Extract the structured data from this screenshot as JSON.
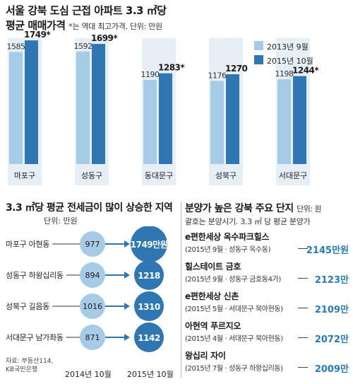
{
  "header": {
    "title": "서울 강북 도심 근접 아파트 3.3 ㎡당",
    "subtitle": "평균 매매가격",
    "note": "*는 역대 최고가격. 단위: 만원"
  },
  "colors": {
    "series_2013": "#a6cbe6",
    "series_2015": "#2e77b3",
    "axis_bg": "#e6eef6",
    "circle_old": "#a6cbe6",
    "circle_new": "#2e77b3",
    "price_text": "#2a7ab8"
  },
  "chart_data": [
    {
      "type": "bar",
      "title": "서울 강북 도심 근접 아파트 3.3 ㎡당 평균 매매가격",
      "categories": [
        "마포구",
        "성동구",
        "동대문구",
        "성북구",
        "서대문구"
      ],
      "series": [
        {
          "name": "2013년 9월",
          "values": [
            1585,
            1592,
            1190,
            1176,
            1198
          ]
        },
        {
          "name": "2015년 10월",
          "values": [
            1749,
            1699,
            1283,
            1270,
            1244
          ]
        }
      ],
      "value_labels_2015": [
        "1749*",
        "1699*",
        "1283*",
        "1270",
        "1244*"
      ],
      "value_labels_2013": [
        "1585",
        "1592",
        "1190",
        "1176",
        "1198"
      ],
      "legend": [
        "2013년 9월",
        "2015년 10월"
      ],
      "legend_position": "top-right"
    },
    {
      "type": "table",
      "title": "3.3 ㎡당 평균 전세금이 많이 상승한 지역",
      "unit": "단위: 만원",
      "rows": [
        {
          "label": "마포구 아현동",
          "y2014": "977",
          "y2015": "1749만원"
        },
        {
          "label": "성동구 하왕십리동",
          "y2014": "894",
          "y2015": "1218"
        },
        {
          "label": "성북구 길음동",
          "y2014": "1016",
          "y2015": "1310"
        },
        {
          "label": "서대문구 남가좌동",
          "y2014": "871",
          "y2015": "1142"
        }
      ],
      "columns": [
        "2014년 10월",
        "2015년 10월"
      ]
    },
    {
      "type": "table",
      "title": "분양가 높은 강북 주요 단지",
      "unit": "단위: 원",
      "subtitle": "괄호는 분양시기. 3.3 ㎡ 당 평균 분양가",
      "rows": [
        {
          "name": "e편한세상 옥수파크힐스",
          "detail": "(2015년 9월 · 성동구 옥수동)",
          "price": "2145만원"
        },
        {
          "name": "힐스테이트 금호",
          "detail": "(2015년 9월 · 성동구 금호동4가)",
          "price": "2123만"
        },
        {
          "name": "e편한세상 신촌",
          "detail": "(2015년 5월 · 서대문구 북아현동)",
          "price": "2109만"
        },
        {
          "name": "아현역 푸르지오",
          "detail": "(2015년 4월 · 서대문구 북아현동)",
          "price": "2072만"
        },
        {
          "name": "왕십리 자이",
          "detail": "(2015년 7월 · 성동구 하왕십리동)",
          "price": "2009만"
        }
      ]
    }
  ],
  "source": {
    "line1": "자료: 부동산114,",
    "line2": "KB국민은행"
  }
}
